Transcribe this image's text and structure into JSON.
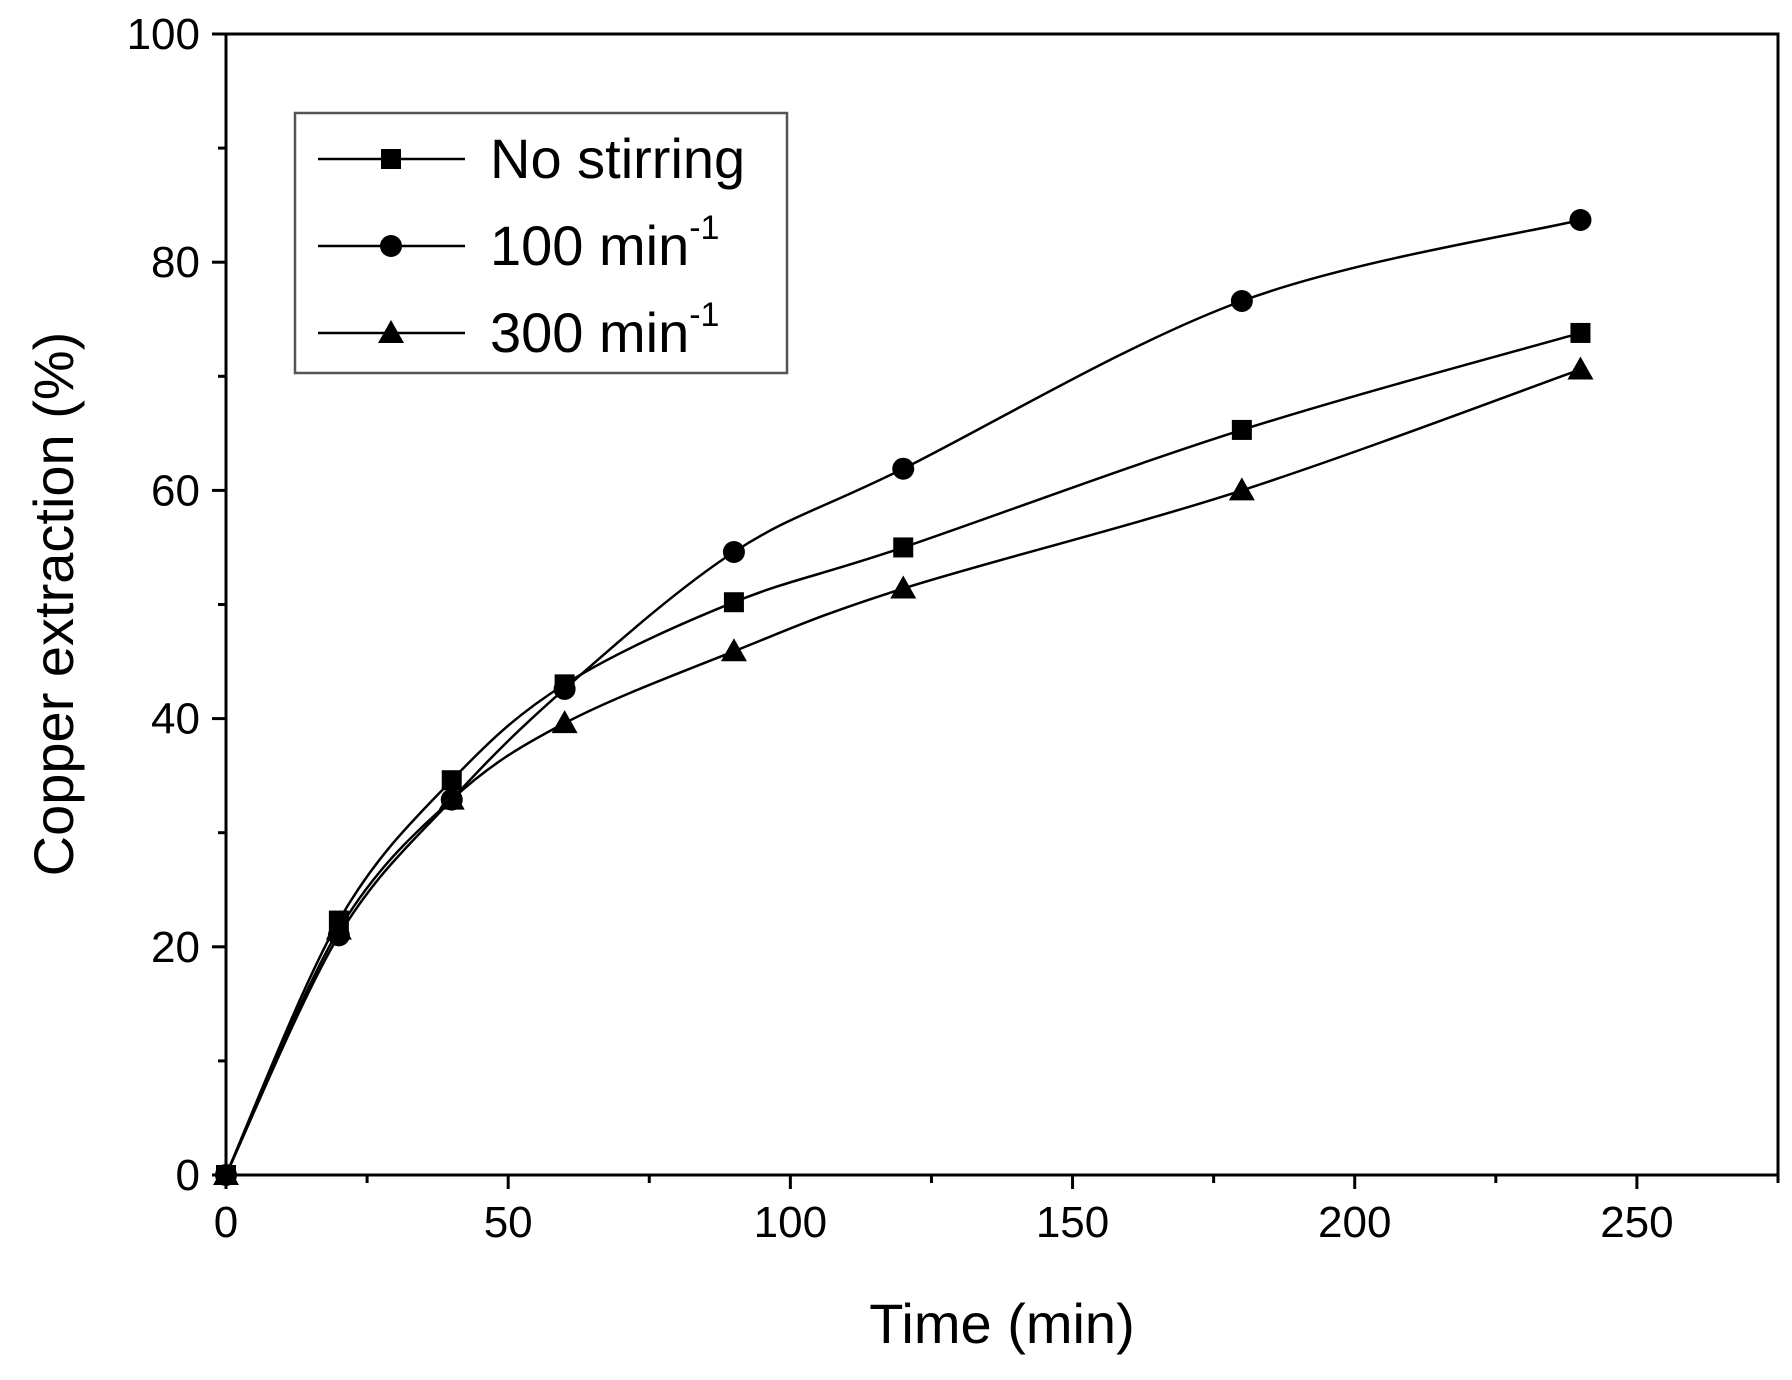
{
  "chart_data": {
    "type": "line",
    "title": "",
    "xlabel": "Time (min)",
    "ylabel": "Copper extraction (%)",
    "xlim": [
      0,
      275
    ],
    "ylim": [
      0,
      100
    ],
    "x_ticks": [
      0,
      50,
      100,
      150,
      200,
      250
    ],
    "y_ticks": [
      0,
      20,
      40,
      60,
      80,
      100
    ],
    "x_minor_step": 25,
    "y_minor_step": 10,
    "grid": false,
    "legend_position": "top-left",
    "series": [
      {
        "name": "No stirring",
        "name_sup": "",
        "marker": "square",
        "x": [
          0,
          20,
          40,
          60,
          90,
          120,
          180,
          240
        ],
        "y": [
          0,
          22.3,
          34.6,
          43.0,
          50.2,
          55.0,
          65.3,
          73.8
        ]
      },
      {
        "name": "100 min",
        "name_sup": "-1",
        "marker": "circle",
        "x": [
          0,
          20,
          40,
          60,
          90,
          120,
          180,
          240
        ],
        "y": [
          0,
          21.0,
          32.9,
          42.6,
          54.6,
          61.9,
          76.6,
          83.7
        ]
      },
      {
        "name": "300 min",
        "name_sup": "-1",
        "marker": "triangle",
        "x": [
          0,
          20,
          40,
          60,
          90,
          120,
          180,
          240
        ],
        "y": [
          0,
          21.5,
          32.9,
          39.6,
          45.9,
          51.4,
          60.0,
          70.6
        ]
      }
    ]
  }
}
